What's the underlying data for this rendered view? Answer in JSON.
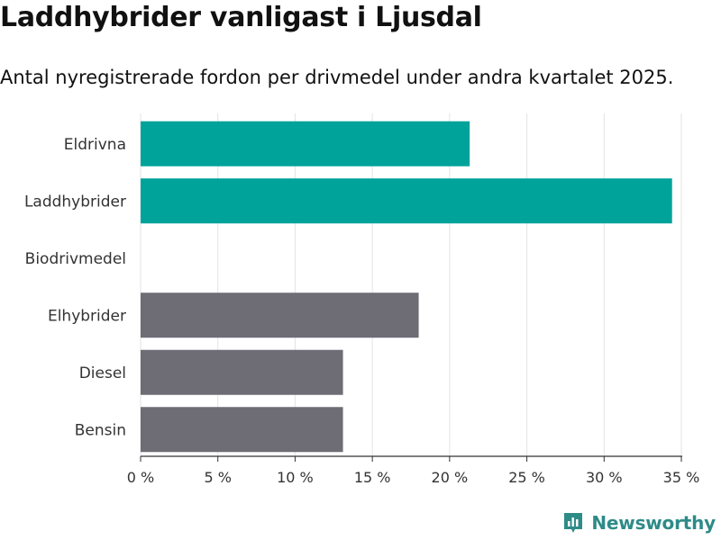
{
  "title": "Laddhybrider vanligast i Ljusdal",
  "subtitle": "Antal nyregistrerade fordon per drivmedel under andra kvartalet 2025.",
  "brand": {
    "name": "Newsworthy",
    "color": "#2e8b87",
    "icon": "bar-chart-logo-icon"
  },
  "chart_data": {
    "type": "bar",
    "orientation": "horizontal",
    "categories": [
      "Eldrivna",
      "Laddhybrider",
      "Biodrivmedel",
      "Elhybrider",
      "Diesel",
      "Bensin"
    ],
    "values": [
      21.3,
      34.4,
      0,
      18.0,
      13.1,
      13.1
    ],
    "colors": [
      "#00a39a",
      "#00a39a",
      "#6e6d76",
      "#6e6d76",
      "#6e6d76",
      "#6e6d76"
    ],
    "xlim": [
      0,
      35
    ],
    "xticks": [
      0,
      5,
      10,
      15,
      20,
      25,
      30,
      35
    ],
    "xtick_labels": [
      "0 %",
      "5 %",
      "10 %",
      "15 %",
      "20 %",
      "25 %",
      "30 %",
      "35 %"
    ],
    "grid": "vertical",
    "xlabel": "",
    "ylabel": ""
  }
}
